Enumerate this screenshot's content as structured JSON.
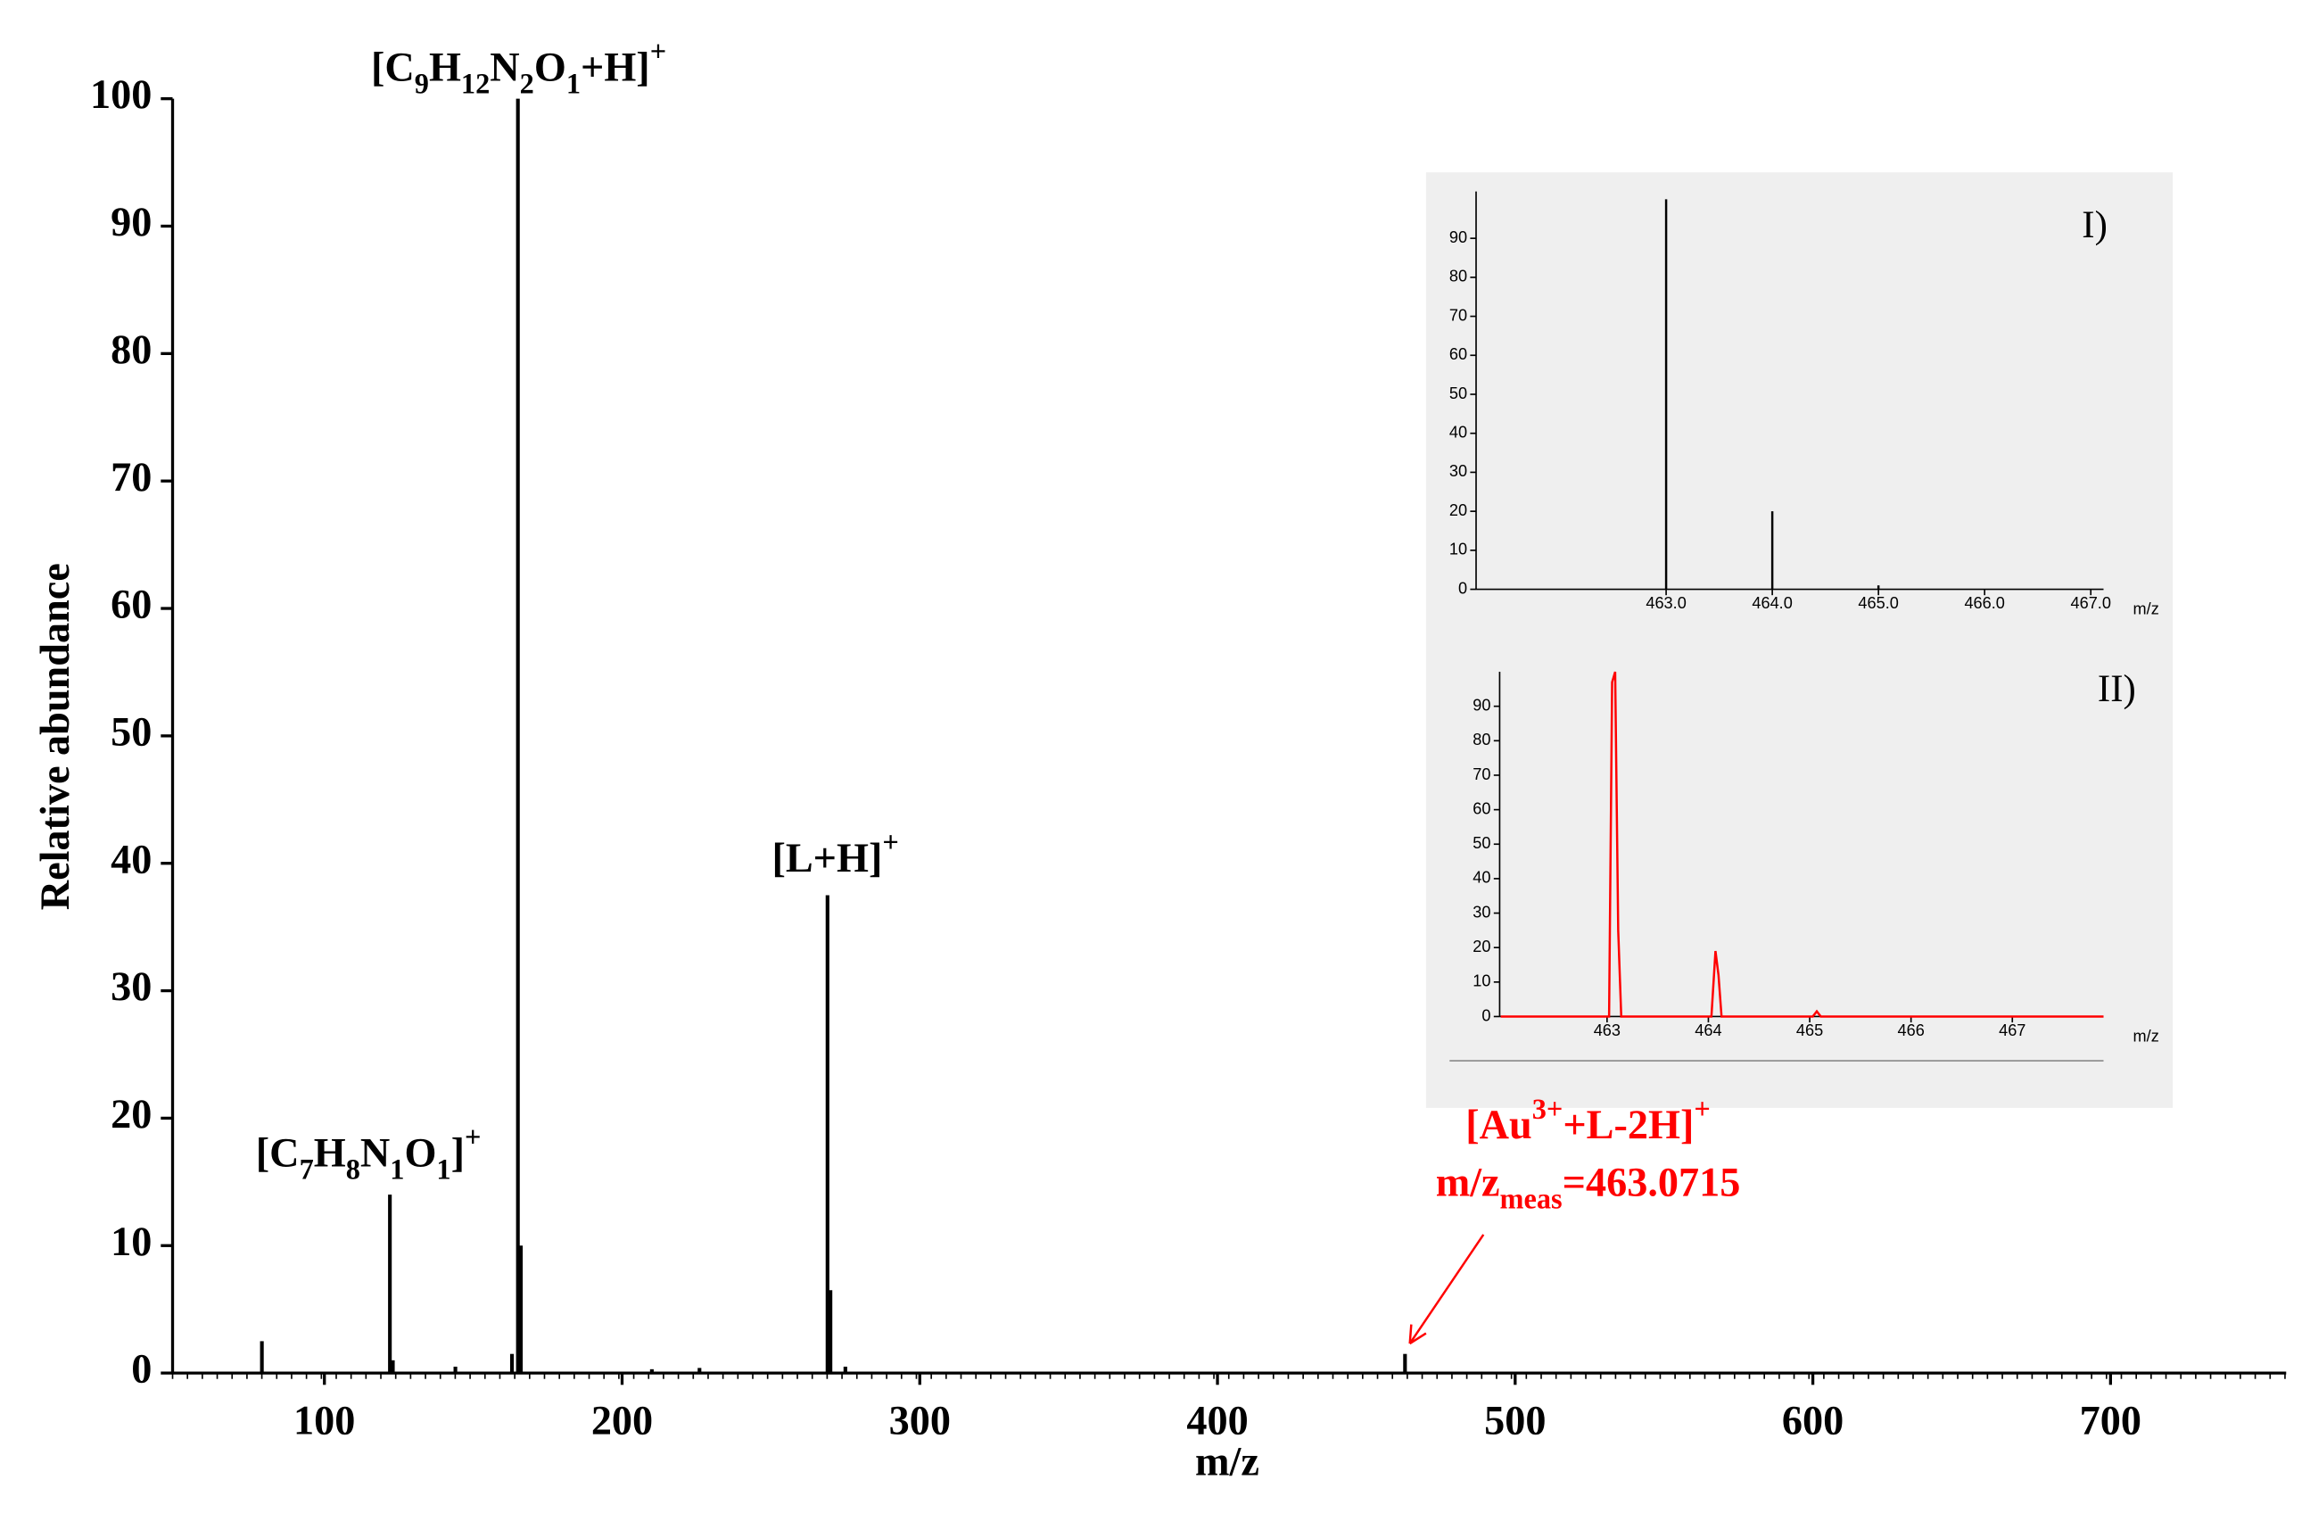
{
  "chart_data": [
    {
      "type": "bar",
      "xlabel": "m/z",
      "ylabel": "Relative abundance",
      "color": "#000000",
      "x": [
        79,
        122,
        123,
        144,
        163,
        165,
        166,
        210,
        226,
        269,
        270,
        275,
        463
      ],
      "values": [
        2.5,
        14,
        1,
        0.5,
        1.5,
        100,
        10,
        0.3,
        0.4,
        37.5,
        6.5,
        0.5,
        1.5
      ],
      "xlim": [
        49,
        759
      ],
      "xticks": [
        100,
        200,
        300,
        400,
        500,
        600,
        700
      ],
      "ylim": [
        0,
        100
      ],
      "yticks": [
        0,
        10,
        20,
        30,
        40,
        50,
        60,
        70,
        80,
        90,
        100
      ],
      "annotations": [
        "[C9H12N2O1+H]+",
        "[L+H]+",
        "[C7H8N1O1]+",
        "[Au3++L-2H]+",
        "m/zmeas=463.0715"
      ],
      "annotation_color": "#ff0000"
    },
    {
      "type": "bar",
      "title": "I)",
      "xlabel": "m/z",
      "color": "#000000",
      "x": [
        463.0,
        464.0,
        465.0
      ],
      "values": [
        100,
        20,
        1
      ],
      "xlim": [
        461.21,
        467.12
      ],
      "xticks": [
        {
          "value": 463,
          "label": "463.0"
        },
        {
          "value": 464,
          "label": "464.0"
        },
        {
          "value": 465,
          "label": "465.0"
        },
        {
          "value": 466,
          "label": "466.0"
        },
        {
          "value": 467,
          "label": "467.0"
        }
      ],
      "ylim": [
        0,
        102
      ],
      "yticks": [
        0,
        10,
        20,
        30,
        40,
        50,
        60,
        70,
        80,
        90
      ]
    },
    {
      "type": "line",
      "title": "II)",
      "xlabel": "m/z",
      "color": "#ff0000",
      "x": [
        461.95,
        463.02,
        463.05,
        463.08,
        463.11,
        463.14,
        464.03,
        464.07,
        464.1,
        464.13,
        465.03,
        465.07,
        465.11,
        467.9
      ],
      "values": [
        0,
        0,
        97,
        100,
        25,
        0,
        0,
        19,
        12,
        0,
        0,
        1.5,
        0,
        0
      ],
      "xlim": [
        461.94,
        467.9
      ],
      "xticks": [
        463,
        464,
        465,
        466,
        467
      ],
      "ylim": [
        0,
        100
      ],
      "yticks": [
        0,
        10,
        20,
        30,
        40,
        50,
        60,
        70,
        80,
        90
      ]
    }
  ]
}
